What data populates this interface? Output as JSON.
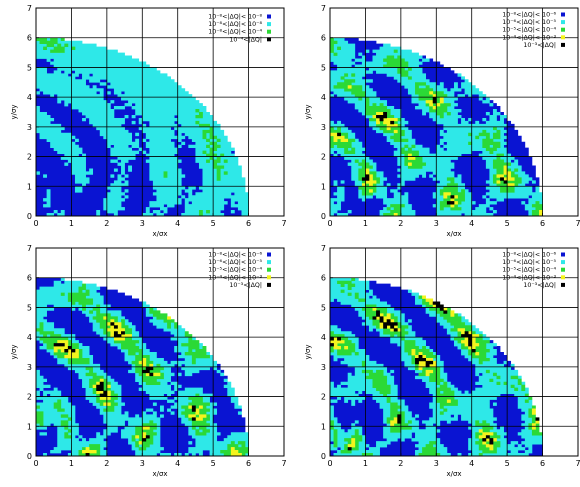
{
  "figure": {
    "colors": {
      "band1": "#0a14d2",
      "band2": "#2ee8e8",
      "band3": "#2bd936",
      "band4": "#f4f41e",
      "band5": "#000000",
      "grid": "#000000",
      "frame": "#000000"
    }
  },
  "chart_data": [
    {
      "type": "heatmap",
      "panel": "top-left",
      "xlabel": "x/σx",
      "ylabel": "y/σy",
      "xlim": [
        0,
        7
      ],
      "ylim": [
        0,
        7
      ],
      "xticks": [
        "0",
        "1",
        "2",
        "3",
        "4",
        "5",
        "6",
        "7"
      ],
      "yticks": [
        "0",
        "1",
        "2",
        "3",
        "4",
        "5",
        "6",
        "7"
      ],
      "grid": true,
      "legend_position": "top-right",
      "legend": [
        {
          "label": "10⁻⁸<|ΔQ|< 10⁻⁸",
          "color": "#0a14d2"
        },
        {
          "label": "10⁻⁸<|ΔQ|< 10⁻⁸",
          "color": "#2ee8e8"
        },
        {
          "label": "10⁻⁸<|ΔQ|< 10⁻⁴",
          "color": "#2bd936"
        },
        {
          "label": "10⁻⁴<|ΔQ|",
          "color": "#000000"
        }
      ],
      "region_radius": 6.0,
      "dominant": "blue"
    },
    {
      "type": "heatmap",
      "panel": "top-right",
      "xlabel": "x/σx",
      "ylabel": "y/σy",
      "xlim": [
        0,
        7
      ],
      "ylim": [
        0,
        7
      ],
      "xticks": [
        "0",
        "1",
        "2",
        "3",
        "4",
        "5",
        "6",
        "7"
      ],
      "yticks": [
        "0",
        "1",
        "2",
        "3",
        "4",
        "5",
        "6",
        "7"
      ],
      "grid": true,
      "legend_position": "top-right",
      "legend": [
        {
          "label": "10⁻⁸<|ΔQ|< 10⁻⁶",
          "color": "#0a14d2"
        },
        {
          "label": "10⁻⁶<|ΔQ|< 10⁻⁵",
          "color": "#2ee8e8"
        },
        {
          "label": "10⁻⁵<|ΔQ|< 10⁻⁴",
          "color": "#2bd936"
        },
        {
          "label": "10⁻⁴<|ΔQ|< 10⁻³",
          "color": "#f4f41e"
        },
        {
          "label": "10⁻³<|ΔQ|",
          "color": "#000000"
        }
      ],
      "region_radius": 6.0,
      "dominant": "mixed"
    },
    {
      "type": "heatmap",
      "panel": "bottom-left",
      "xlabel": "x/σx",
      "ylabel": "y/σy",
      "xlim": [
        0,
        7
      ],
      "ylim": [
        0,
        7
      ],
      "xticks": [
        "0",
        "1",
        "2",
        "3",
        "4",
        "5",
        "6",
        "7"
      ],
      "yticks": [
        "0",
        "1",
        "2",
        "3",
        "4",
        "5",
        "6",
        "7"
      ],
      "grid": true,
      "legend_position": "top-right",
      "legend": [
        {
          "label": "10⁻⁸<|ΔQ|< 10⁻⁶",
          "color": "#0a14d2"
        },
        {
          "label": "10⁻⁶<|ΔQ|< 10⁻⁵",
          "color": "#2ee8e8"
        },
        {
          "label": "10⁻⁵<|ΔQ|< 10⁻⁴",
          "color": "#2bd936"
        },
        {
          "label": "10⁻⁴<|ΔQ|< 10⁻³",
          "color": "#f4f41e"
        },
        {
          "label": "10⁻³<|ΔQ|",
          "color": "#000000"
        }
      ],
      "region_radius": 6.0,
      "dominant": "mixed"
    },
    {
      "type": "heatmap",
      "panel": "bottom-right",
      "xlabel": "x/σx",
      "ylabel": "y/σy",
      "xlim": [
        0,
        7
      ],
      "ylim": [
        0,
        7
      ],
      "xticks": [
        "0",
        "1",
        "2",
        "3",
        "4",
        "5",
        "6",
        "7"
      ],
      "yticks": [
        "0",
        "1",
        "2",
        "3",
        "4",
        "5",
        "6",
        "7"
      ],
      "grid": true,
      "legend_position": "top-right",
      "legend": [
        {
          "label": "10⁻⁸<|ΔQ|< 10⁻⁶",
          "color": "#0a14d2"
        },
        {
          "label": "10⁻⁶<|ΔQ|< 10⁻⁵",
          "color": "#2ee8e8"
        },
        {
          "label": "10⁻⁵<|ΔQ|< 10⁻⁴",
          "color": "#2bd936"
        },
        {
          "label": "10⁻⁴<|ΔQ|< 10⁻³",
          "color": "#f4f41e"
        },
        {
          "label": "10⁻³<|ΔQ|",
          "color": "#000000"
        }
      ],
      "region_radius": 6.0,
      "dominant": "mixed"
    }
  ]
}
